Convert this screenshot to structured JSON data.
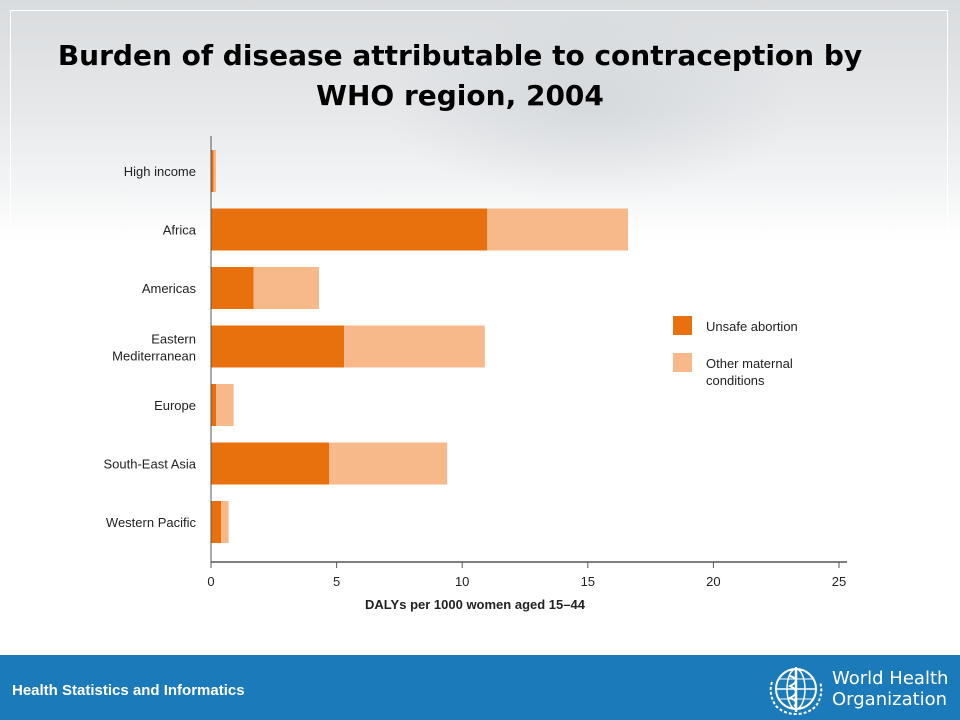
{
  "slide": {
    "title": "Burden of disease attributable to contraception by WHO region, 2004"
  },
  "footer": {
    "text": "Health Statistics and Informatics",
    "org_line1": "World Health",
    "org_line2": "Organization",
    "emblem_icon": "who-emblem-icon"
  },
  "colors": {
    "unsafe_abortion": "#e8710d",
    "other_maternal": "#f8b98a",
    "footer_bg": "#1b7ab9",
    "axis": "#555555"
  },
  "chart_data": {
    "type": "bar",
    "orientation": "horizontal",
    "stacked": true,
    "categories": [
      "High income",
      "Africa",
      "Americas",
      "Eastern\nMediterranean",
      "Europe",
      "South-East Asia",
      "Western Pacific"
    ],
    "series": [
      {
        "name": "Unsafe abortion",
        "values": [
          0.1,
          11.0,
          1.7,
          5.3,
          0.2,
          4.7,
          0.4
        ]
      },
      {
        "name": "Other maternal\nconditions",
        "values": [
          0.1,
          5.6,
          2.6,
          5.6,
          0.7,
          4.7,
          0.3
        ]
      }
    ],
    "xlabel": "DALYs per 1000 women aged 15–44",
    "xlim": [
      0,
      25
    ],
    "xticks": [
      0,
      5,
      10,
      15,
      20,
      25
    ],
    "legend_position": "right",
    "grid": false
  }
}
